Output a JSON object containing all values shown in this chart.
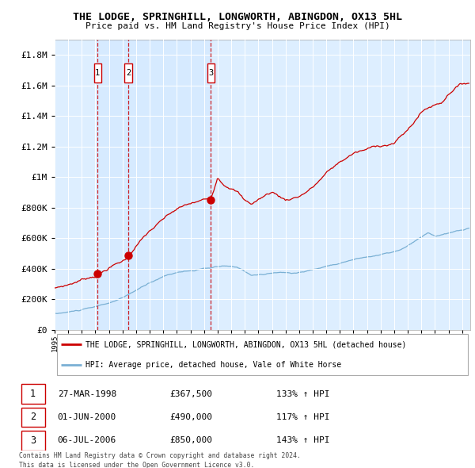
{
  "title": "THE LODGE, SPRINGHILL, LONGWORTH, ABINGDON, OX13 5HL",
  "subtitle": "Price paid vs. HM Land Registry's House Price Index (HPI)",
  "legend_property": "THE LODGE, SPRINGHILL, LONGWORTH, ABINGDON, OX13 5HL (detached house)",
  "legend_hpi": "HPI: Average price, detached house, Vale of White Horse",
  "table_rows": [
    [
      "1",
      "27-MAR-1998",
      "£367,500",
      "133% ↑ HPI"
    ],
    [
      "2",
      "01-JUN-2000",
      "£490,000",
      "117% ↑ HPI"
    ],
    [
      "3",
      "06-JUL-2006",
      "£850,000",
      "143% ↑ HPI"
    ]
  ],
  "footer_line1": "Contains HM Land Registry data © Crown copyright and database right 2024.",
  "footer_line2": "This data is licensed under the Open Government Licence v3.0.",
  "property_color": "#cc0000",
  "hpi_color": "#7ab0d4",
  "dashed_line_color": "#cc0000",
  "plot_bg_color": "#ddeeff",
  "grid_color": "#ffffff",
  "ylim": [
    0,
    1900000
  ],
  "yticks": [
    0,
    200000,
    400000,
    600000,
    800000,
    1000000,
    1200000,
    1400000,
    1600000,
    1800000
  ],
  "sale_dates_float": [
    1998.1667,
    2000.4167,
    2006.5
  ],
  "sale_prices": [
    367500,
    490000,
    850000
  ],
  "sale_labels": [
    "1",
    "2",
    "3"
  ],
  "hpi_waypoints_x": [
    1995.0,
    1996.0,
    1997.0,
    1998.0,
    1999.0,
    2000.0,
    2001.0,
    2002.0,
    2003.0,
    2004.0,
    2005.0,
    2006.0,
    2007.5,
    2008.5,
    2009.5,
    2010.5,
    2011.5,
    2012.5,
    2013.5,
    2014.5,
    2015.5,
    2016.5,
    2017.5,
    2018.5,
    2019.5,
    2020.5,
    2021.5,
    2022.5,
    2023.0,
    2024.0,
    2025.5
  ],
  "hpi_waypoints_y": [
    105000,
    115000,
    130000,
    145000,
    170000,
    200000,
    250000,
    295000,
    340000,
    370000,
    380000,
    390000,
    405000,
    390000,
    345000,
    350000,
    360000,
    355000,
    370000,
    390000,
    415000,
    440000,
    460000,
    475000,
    490000,
    510000,
    560000,
    615000,
    595000,
    610000,
    640000
  ],
  "prop_waypoints_x": [
    1995.0,
    1996.0,
    1997.0,
    1998.17,
    1999.0,
    2000.0,
    2000.42,
    2001.0,
    2002.0,
    2003.0,
    2004.0,
    2005.0,
    2006.0,
    2006.5,
    2007.0,
    2007.5,
    2008.0,
    2008.5,
    2009.0,
    2009.5,
    2010.0,
    2011.0,
    2012.0,
    2013.0,
    2014.0,
    2015.0,
    2016.0,
    2017.0,
    2018.0,
    2019.0,
    2020.0,
    2021.0,
    2022.0,
    2022.5,
    2023.0,
    2023.5,
    2024.0,
    2024.5,
    2025.5
  ],
  "prop_waypoints_y": [
    270000,
    295000,
    330000,
    367500,
    420000,
    460000,
    490000,
    570000,
    660000,
    730000,
    790000,
    820000,
    840000,
    850000,
    1000000,
    960000,
    950000,
    920000,
    860000,
    840000,
    870000,
    920000,
    870000,
    900000,
    960000,
    1050000,
    1120000,
    1180000,
    1200000,
    1230000,
    1250000,
    1330000,
    1450000,
    1480000,
    1500000,
    1520000,
    1580000,
    1630000,
    1660000
  ]
}
